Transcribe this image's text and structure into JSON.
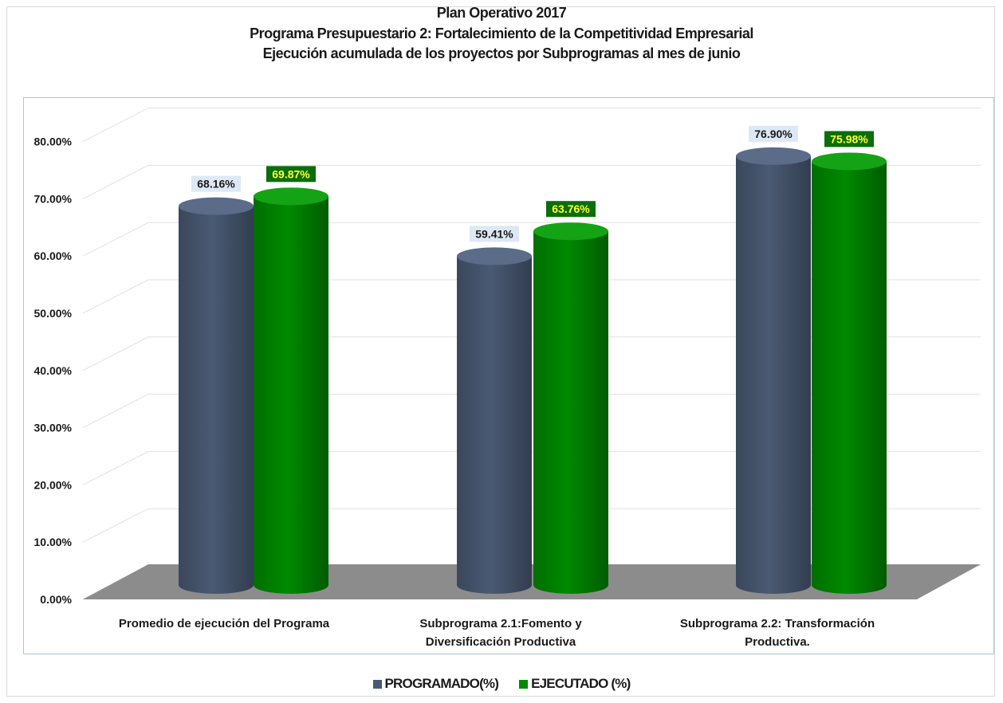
{
  "title": {
    "line1": "Plan Operativo 2017",
    "line2": "Programa Presupuestario 2: Fortalecimiento de la Competitividad Empresarial",
    "line3": "Ejecución acumulada de los proyectos por Subprogramas al mes de junio"
  },
  "legend": {
    "programado": "PROGRAMADO(%)",
    "ejecutado": "EJECUTADO (%)"
  },
  "colors": {
    "programado": "#4a5a73",
    "ejecutado": "#008a00",
    "label_programado_bg": "#dde8f4",
    "label_ejecutado_bg": "#0a6e0a",
    "label_ejecutado_text": "#ffff33"
  },
  "chart_data": {
    "type": "bar",
    "style": "3d-cylinder",
    "categories": [
      [
        "Promedio de ejecución del Programa"
      ],
      [
        "Subprograma 2.1:Fomento y",
        "Diversificación Productiva"
      ],
      [
        "Subprograma 2.2: Transformación",
        "Productiva."
      ]
    ],
    "series": [
      {
        "name": "PROGRAMADO(%)",
        "values": [
          68.16,
          59.41,
          76.9
        ],
        "labels": [
          "68.16%",
          "59.41%",
          "76.90%"
        ]
      },
      {
        "name": "EJECUTADO (%)",
        "values": [
          69.87,
          63.76,
          75.98
        ],
        "labels": [
          "69.87%",
          "63.76%",
          "75.98%"
        ]
      }
    ],
    "yticks": [
      "0.00%",
      "10.00%",
      "20.00%",
      "30.00%",
      "40.00%",
      "50.00%",
      "60.00%",
      "70.00%",
      "80.00%"
    ],
    "ylim": [
      0,
      80
    ],
    "grid": true,
    "legend_position": "bottom"
  }
}
